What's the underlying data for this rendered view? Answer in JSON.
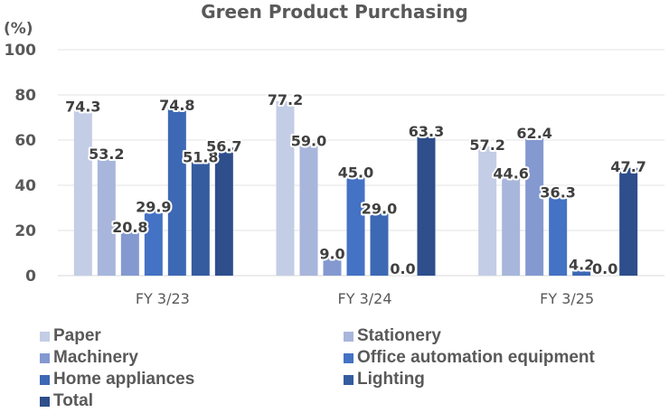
{
  "chart_data": {
    "type": "bar",
    "title": "Green Product Purchasing",
    "ylabel": "(%)",
    "xlabel": "",
    "ylim": [
      0,
      100
    ],
    "yticks": [
      "0",
      "20",
      "40",
      "60",
      "80",
      "100"
    ],
    "grid": true,
    "legend_position": "bottom",
    "categories": [
      "FY 3/23",
      "FY 3/24",
      "FY 3/25"
    ],
    "series": [
      {
        "name": "Paper",
        "color": "#C3CDE6",
        "values": [
          74.3,
          77.2,
          57.2
        ],
        "labels": [
          "74.3",
          "77.2",
          "57.2"
        ]
      },
      {
        "name": "Stationery",
        "color": "#A8B6DC",
        "values": [
          53.2,
          59.0,
          44.6
        ],
        "labels": [
          "53.2",
          "59.0",
          "44.6"
        ]
      },
      {
        "name": "Machinery",
        "color": "#8399D0",
        "values": [
          20.8,
          9.0,
          62.4
        ],
        "labels": [
          "20.8",
          "9.0",
          "62.4"
        ]
      },
      {
        "name": "Office automation equipment",
        "color": "#4472C4",
        "values": [
          29.9,
          45.0,
          36.3
        ],
        "labels": [
          "29.9",
          "45.0",
          "36.3"
        ]
      },
      {
        "name": "Home appliances",
        "color": "#3D68B4",
        "values": [
          74.8,
          29.0,
          4.2
        ],
        "labels": [
          "74.8",
          "29.0",
          "4.2"
        ]
      },
      {
        "name": "Lighting",
        "color": "#345C9F",
        "values": [
          51.8,
          0.0,
          0.0
        ],
        "labels": [
          "51.8",
          "0.0",
          "0.0"
        ]
      },
      {
        "name": "Total",
        "color": "#2E4E8C",
        "values": [
          56.7,
          63.3,
          47.7
        ],
        "labels": [
          "56.7",
          "63.3",
          "47.7"
        ]
      }
    ]
  }
}
